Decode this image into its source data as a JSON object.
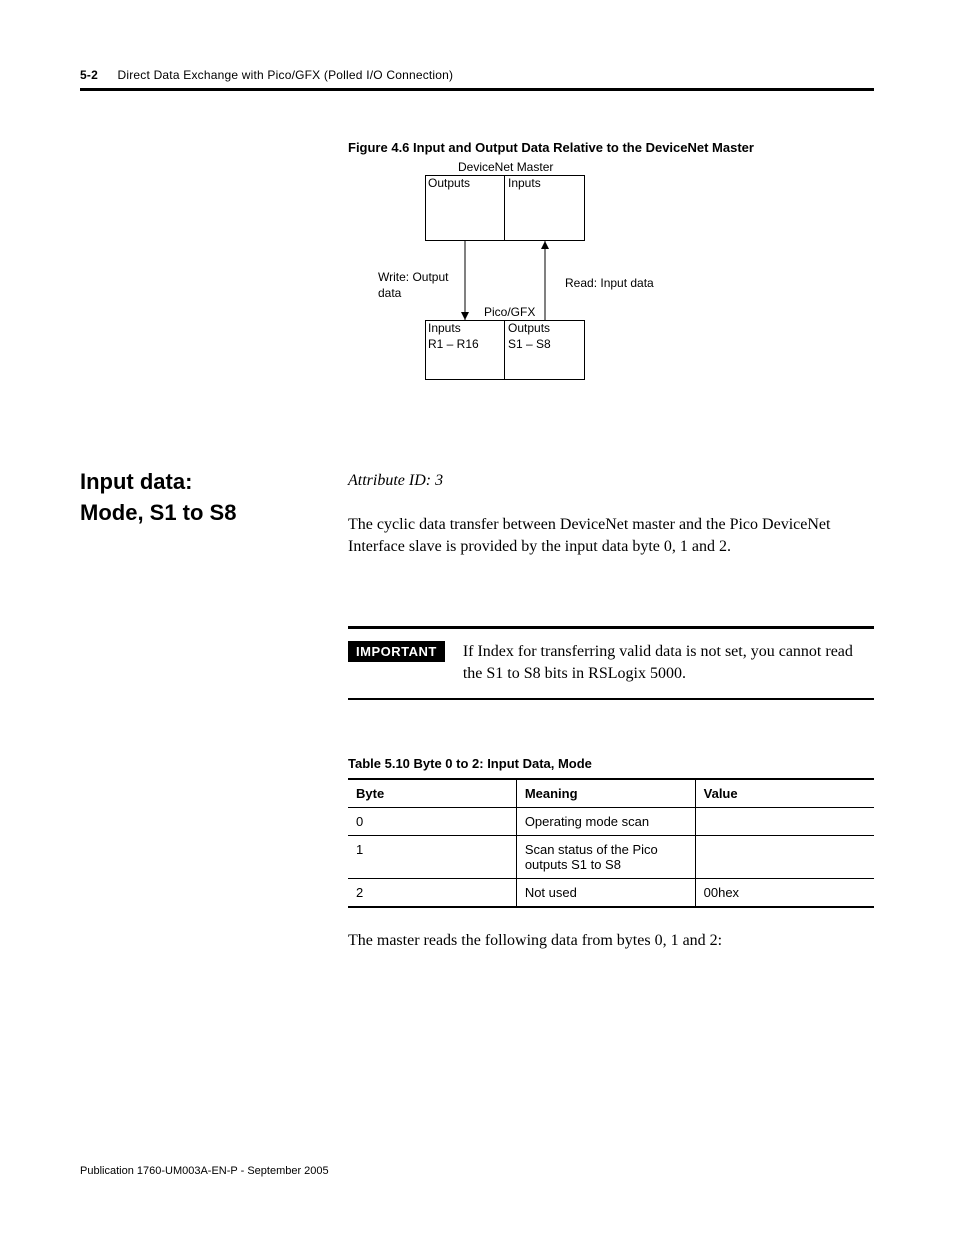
{
  "header": {
    "pagenum": "5-2",
    "title": "Direct Data Exchange with Pico/GFX (Polled I/O Connection)"
  },
  "figure": {
    "caption": "Figure 4.6 Input and Output Data Relative to the DeviceNet Master",
    "master_label": "DeviceNet Master",
    "master_outputs": "Outputs",
    "master_inputs": "Inputs",
    "write_label_l1": "Write: Output",
    "write_label_l2": "data",
    "read_label": "Read: Input data",
    "pico_label": "Pico/GFX",
    "pico_inputs": "Inputs",
    "pico_inputs_range": "R1 – R16",
    "pico_outputs": "Outputs",
    "pico_outputs_range": "S1 – S8"
  },
  "section": {
    "heading_l1": "Input data:",
    "heading_l2": "Mode, S1 to S8",
    "attr_id": "Attribute ID: 3",
    "para1": "The cyclic data transfer between DeviceNet master and the Pico DeviceNet Interface slave is provided by the input data byte 0, 1 and 2."
  },
  "important": {
    "badge": "IMPORTANT",
    "text": "If Index for transferring valid data is not set, you cannot read the S1 to S8 bits in RSLogix 5000."
  },
  "table": {
    "title": "Table 5.10 Byte 0 to 2: Input Data, Mode",
    "columns": [
      "Byte",
      "Meaning",
      "Value"
    ],
    "col_widths": [
      "32%",
      "34%",
      "34%"
    ],
    "rows": [
      [
        "0",
        "Operating mode scan",
        ""
      ],
      [
        "1",
        "Scan status of the Pico outputs S1 to S8",
        ""
      ],
      [
        "2",
        "Not used",
        "00hex"
      ]
    ]
  },
  "para2": "The master reads the following data from bytes 0, 1 and 2:",
  "footer": "Publication 1760-UM003A-EN-P - September 2005"
}
